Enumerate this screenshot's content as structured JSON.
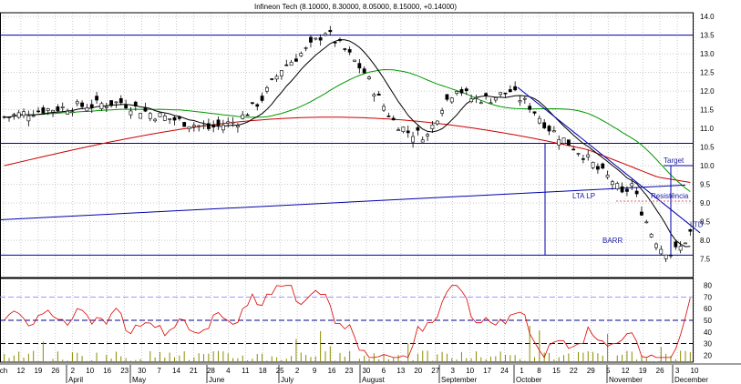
{
  "chart_data": {
    "type": "candlestick",
    "title": "Infineon Tech (8.10000, 8.30000, 8.05000, 8.15000, +0.14000)",
    "price_axis": {
      "ylim": [
        7.0,
        14.1
      ],
      "ticks": [
        "7.5",
        "8.0",
        "8.5",
        "9.0",
        "9.5",
        "10.0",
        "10.5",
        "11.0",
        "11.5",
        "12.0",
        "12.5",
        "13.0",
        "13.5",
        "14.0"
      ]
    },
    "indicator_axis": {
      "ylim": [
        14,
        86
      ],
      "ticks": [
        "20",
        "30",
        "40",
        "50",
        "60",
        "70",
        "80"
      ],
      "reference_levels": [
        70,
        50,
        30
      ]
    },
    "x_ticks": [
      "ch",
      "12",
      "19",
      "26",
      "2",
      "10",
      "16",
      "23",
      "30",
      "7",
      "14",
      "21",
      "28",
      "4",
      "11",
      "18",
      "25",
      "2",
      "9",
      "16",
      "23",
      "30",
      "6",
      "13",
      "20",
      "27",
      "3",
      "10",
      "17",
      "24",
      "1",
      "8",
      "15",
      "22",
      "29",
      "5",
      "12",
      "19",
      "26",
      "3",
      "10"
    ],
    "months": [
      "April",
      "May",
      "June",
      "July",
      "August",
      "September",
      "October",
      "November",
      "December"
    ],
    "horizontal_levels": [
      13.5,
      10.6,
      7.6
    ],
    "price_path": [
      [
        0,
        11.3
      ],
      [
        8,
        11.5
      ],
      [
        16,
        11.6
      ],
      [
        24,
        11.7
      ],
      [
        30,
        11.4
      ],
      [
        36,
        11.2
      ],
      [
        42,
        11.0
      ],
      [
        48,
        11.2
      ],
      [
        53,
        11.8
      ],
      [
        57,
        12.6
      ],
      [
        60,
        12.9
      ],
      [
        63,
        13.2
      ],
      [
        66,
        13.6
      ],
      [
        70,
        13.1
      ],
      [
        74,
        12.5
      ],
      [
        77,
        11.8
      ],
      [
        80,
        11.2
      ],
      [
        83,
        10.9
      ],
      [
        87,
        10.8
      ],
      [
        90,
        11.6
      ],
      [
        93,
        12.1
      ],
      [
        96,
        11.8
      ],
      [
        100,
        11.8
      ],
      [
        104,
        12.0
      ],
      [
        108,
        11.6
      ],
      [
        112,
        11.0
      ],
      [
        116,
        10.6
      ],
      [
        119,
        10.3
      ],
      [
        122,
        9.9
      ],
      [
        125,
        9.6
      ],
      [
        127,
        9.2
      ],
      [
        129,
        9.5
      ],
      [
        131,
        8.8
      ],
      [
        133,
        8.2
      ],
      [
        135,
        7.8
      ],
      [
        137,
        7.65
      ],
      [
        139,
        7.8
      ],
      [
        141,
        8.2
      ]
    ],
    "volume_seed": 7,
    "annotations": [
      {
        "text": "Target",
        "price": 10.0
      },
      {
        "text": "Resistência",
        "price": 9.05
      },
      {
        "text": "LTA LP",
        "price": 9.2
      },
      {
        "text": "LTD",
        "price": 8.4
      },
      {
        "text": "BARR",
        "price": 8.0
      }
    ],
    "colors": {
      "candle": "#000000",
      "ma_fast": "#000000",
      "ma_mid": "#009900",
      "ma_slow": "#cc0000",
      "trendline": "#0000aa",
      "indicator": "#dd0000",
      "volume": "#8c8c00",
      "grid": "#aaaaaa",
      "dashed_70": "#9c9cff",
      "dashed_50_30": "#000088"
    }
  }
}
